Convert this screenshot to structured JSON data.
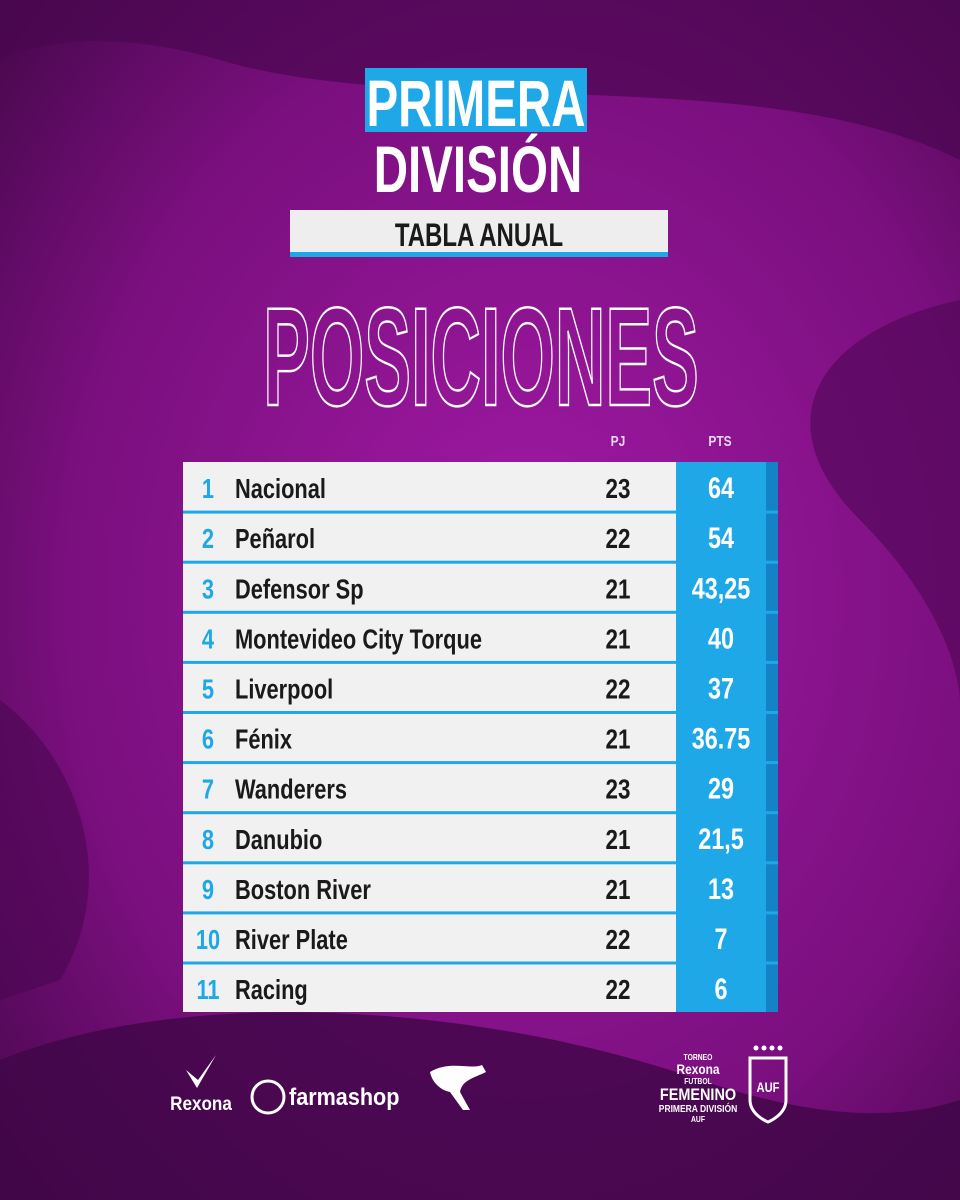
{
  "header": {
    "title_line1": "PRIMERA",
    "title_line2": "DIVISIÓN",
    "subtitle": "TABLA ANUAL"
  },
  "section_title": "POSICIONES",
  "table": {
    "columns": [
      "PJ",
      "PTS"
    ],
    "rows": [
      [
        "1",
        "Nacional",
        "23",
        "64"
      ],
      [
        "2",
        "Peñarol",
        "22",
        "54"
      ],
      [
        "3",
        "Defensor Sp",
        "21",
        "43,25"
      ],
      [
        "4",
        "Montevideo City Torque",
        "21",
        "40"
      ],
      [
        "5",
        "Liverpool",
        "22",
        "37"
      ],
      [
        "6",
        "Fénix",
        "21",
        "36.75"
      ],
      [
        "7",
        "Wanderers",
        "23",
        "29"
      ],
      [
        "8",
        "Danubio",
        "21",
        "21,5"
      ],
      [
        "9",
        "Boston River",
        "21",
        "13"
      ],
      [
        "10",
        "River Plate",
        "22",
        "7"
      ],
      [
        "11",
        "Racing",
        "22",
        "6"
      ]
    ]
  },
  "footer": {
    "sponsors": [
      "Rexona",
      "farmashop"
    ],
    "league_logo": [
      "TORNEO",
      "Rexona",
      "FUTBOL",
      "FEMENINO",
      "PRIMERA DIVISIÓN",
      "AUF"
    ],
    "federation": "AUF"
  }
}
